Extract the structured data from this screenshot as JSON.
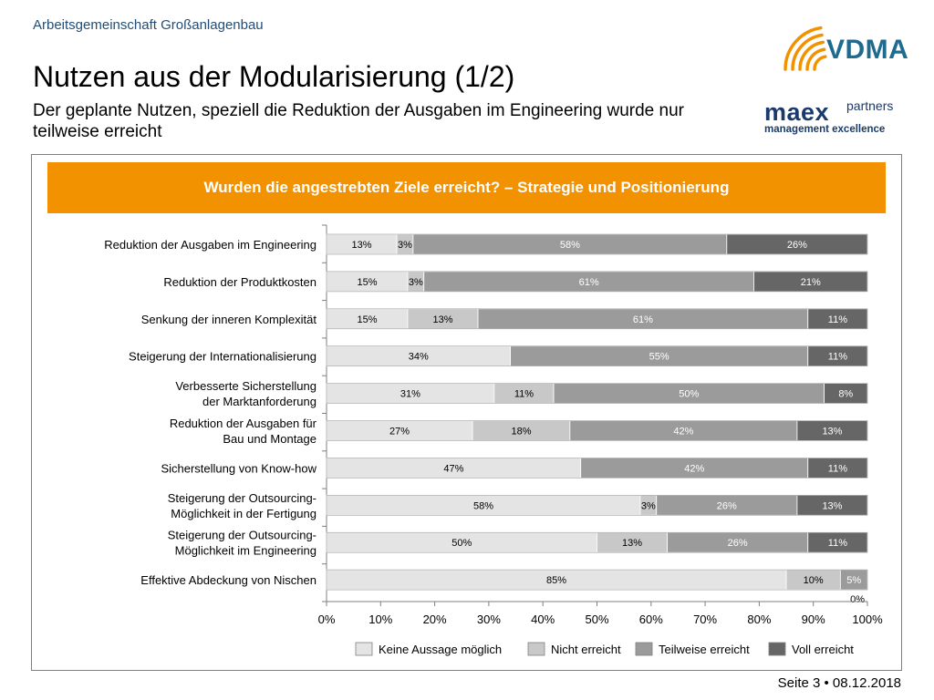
{
  "header": {
    "org": "Arbeitsgemeinschaft Großanlagenbau",
    "title": "Nutzen aus der Modularisierung (1/2)",
    "subtitle": "Der geplante Nutzen, speziell die Reduktion der Ausgaben im Engineering wurde nur teilweise erreicht"
  },
  "logos": {
    "vdma": "VDMA",
    "maex": "maex",
    "partners": "partners",
    "tagline": "management excellence",
    "arc_color": "#f39200"
  },
  "banner": {
    "text": "Wurden die angestrebten Ziele erreicht? – Strategie und Positionierung",
    "color": "#f39200"
  },
  "chart_data": {
    "type": "bar",
    "orientation": "horizontal",
    "stacked": true,
    "categories": [
      [
        "Reduktion der Ausgaben im Engineering"
      ],
      [
        "Reduktion der Produktkosten"
      ],
      [
        "Senkung der inneren Komplexität"
      ],
      [
        "Steigerung der Internationalisierung"
      ],
      [
        "Verbesserte Sicherstellung",
        "der Marktanforderung"
      ],
      [
        "Reduktion der Ausgaben für",
        "Bau und Montage"
      ],
      [
        "Sicherstellung von Know-how"
      ],
      [
        "Steigerung der Outsourcing-",
        "Möglichkeit in der Fertigung"
      ],
      [
        "Steigerung der Outsourcing-",
        "Möglichkeit im Engineering"
      ],
      [
        "Effektive Abdeckung von Nischen"
      ]
    ],
    "series": [
      {
        "name": "Keine Aussage möglich",
        "color": "#e4e4e4",
        "values": [
          13,
          15,
          15,
          34,
          31,
          27,
          47,
          58,
          50,
          85
        ]
      },
      {
        "name": "Nicht erreicht",
        "color": "#c8c8c8",
        "values": [
          3,
          3,
          13,
          0,
          11,
          18,
          0,
          3,
          13,
          10
        ]
      },
      {
        "name": "Teilweise erreicht",
        "color": "#9b9b9b",
        "values": [
          58,
          61,
          61,
          55,
          50,
          42,
          42,
          26,
          26,
          5
        ]
      },
      {
        "name": "Voll erreicht",
        "color": "#666666",
        "values": [
          26,
          21,
          11,
          11,
          8,
          13,
          11,
          13,
          11,
          0
        ]
      }
    ],
    "extra_label": "0%",
    "xlim": [
      0,
      100
    ],
    "xticks": [
      "0%",
      "10%",
      "20%",
      "30%",
      "40%",
      "50%",
      "60%",
      "70%",
      "80%",
      "90%",
      "100%"
    ],
    "legend_position": "bottom"
  },
  "footer": {
    "page": "Seite 3 • 08.12.2018"
  }
}
